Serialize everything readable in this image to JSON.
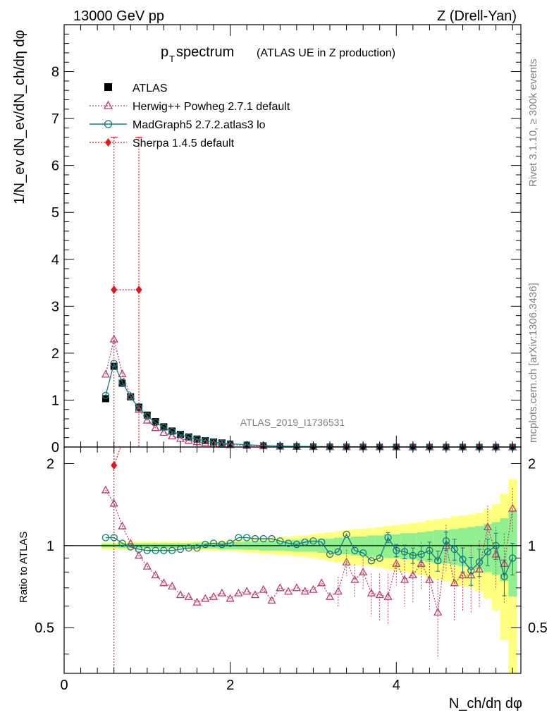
{
  "header": {
    "energy": "13000 GeV pp",
    "process": "Z (Drell-Yan)"
  },
  "side": {
    "rivet": "Rivet 3.1.10, ≥ 300k events",
    "mcplots": "mcplots.cern.ch [arXiv:1306.3436]"
  },
  "chart_data": {
    "type": "line",
    "title_main": "p",
    "title_sub": "T",
    "title_rest": " spectrum",
    "title_extra": "(ATLAS UE in Z production)",
    "watermark": "ATLAS_2019_I1736531",
    "ylabel_top": "1/N_ev dN_ev/dN_ch/dη dφ",
    "ylabel_bottom": "Ratio to ATLAS",
    "xlabel": "N_ch/dη dφ",
    "xlim": [
      0,
      5.5
    ],
    "ylim_top": [
      0,
      9
    ],
    "ylim_bottom": [
      0.34,
      2.3
    ],
    "xticks": [
      "0",
      "2",
      "4"
    ],
    "yticks_top": [
      "0",
      "1",
      "2",
      "3",
      "4",
      "5",
      "6",
      "7",
      "8"
    ],
    "yticks_bottom": [
      "0.5",
      "1",
      "2"
    ],
    "legend": [
      {
        "name": "ATLAS",
        "color": "#000000",
        "marker": "square"
      },
      {
        "name": "Herwig++ Powheg 2.7.1 default",
        "color": "#c23b6c",
        "marker": "triangle"
      },
      {
        "name": "MadGraph5 2.7.2.atlas3 lo",
        "color": "#137a7a",
        "marker": "circle"
      },
      {
        "name": "Sherpa 1.4.5 default",
        "color": "#e8141c",
        "marker": "diamond"
      }
    ],
    "atlas": {
      "x": [
        0.5,
        0.6,
        0.7,
        0.8,
        0.9,
        1.0,
        1.1,
        1.2,
        1.3,
        1.4,
        1.5,
        1.6,
        1.7,
        1.8,
        1.9,
        2.0,
        2.2,
        2.4,
        2.6,
        2.8,
        3.0,
        3.2,
        3.4,
        3.6,
        3.8,
        4.0,
        4.2,
        4.4,
        4.6,
        4.8,
        5.0,
        5.2,
        5.4
      ],
      "y": [
        1.03,
        1.72,
        1.36,
        1.07,
        0.85,
        0.68,
        0.54,
        0.43,
        0.34,
        0.27,
        0.215,
        0.17,
        0.135,
        0.108,
        0.087,
        0.07,
        0.047,
        0.031,
        0.021,
        0.014,
        0.0095,
        0.0065,
        0.0045,
        0.003,
        0.002,
        0.0014,
        0.001,
        0.0007,
        0.0005,
        0.0003,
        0.0002,
        0.00015,
        0.0001
      ]
    },
    "herwig": {
      "x": [
        0.5,
        0.6,
        0.7,
        0.8,
        0.9,
        1.0,
        1.1,
        1.2,
        1.3,
        1.4,
        1.5,
        1.6,
        1.7,
        1.8,
        1.9,
        2.0,
        2.2,
        2.4,
        2.6,
        2.8,
        3.0,
        3.2,
        3.4,
        3.6,
        3.8,
        4.0,
        4.2,
        4.4,
        4.6,
        4.8,
        5.0,
        5.2,
        5.4
      ],
      "y": [
        1.55,
        2.3,
        1.56,
        1.09,
        0.8,
        0.57,
        0.41,
        0.31,
        0.235,
        0.18,
        0.14,
        0.11,
        0.088,
        0.07,
        0.057,
        0.046,
        0.031,
        0.021,
        0.014,
        0.0095,
        0.0065,
        0.0045,
        0.003,
        0.002,
        0.0014,
        0.001,
        0.0007,
        0.0005,
        0.0003,
        0.0002,
        0.00015,
        0.0001,
        0.0001
      ],
      "ratio_x": [
        0.5,
        0.6,
        0.7,
        0.8,
        0.9,
        1.0,
        1.1,
        1.2,
        1.3,
        1.4,
        1.5,
        1.6,
        1.7,
        1.8,
        1.9,
        2.0,
        2.1,
        2.2,
        2.3,
        2.4,
        2.5,
        2.6,
        2.7,
        2.8,
        2.9,
        3.0,
        3.1,
        3.2,
        3.3,
        3.4,
        3.5,
        3.6,
        3.7,
        3.8,
        3.9,
        4.0,
        4.1,
        4.2,
        4.3,
        4.4,
        4.5,
        4.6,
        4.7,
        4.8,
        4.9,
        5.0,
        5.1,
        5.2,
        5.3,
        5.4
      ],
      "ratio": [
        1.6,
        1.43,
        1.18,
        1.02,
        0.92,
        0.84,
        0.78,
        0.73,
        0.71,
        0.66,
        0.65,
        0.62,
        0.64,
        0.65,
        0.67,
        0.64,
        0.67,
        0.68,
        0.66,
        0.69,
        0.63,
        0.7,
        0.68,
        0.7,
        0.68,
        0.69,
        0.73,
        0.65,
        0.68,
        0.87,
        0.75,
        0.8,
        0.67,
        0.66,
        0.65,
        0.86,
        0.75,
        0.78,
        0.86,
        0.75,
        0.57,
        1.0,
        0.73,
        0.78,
        0.78,
        0.82,
        1.17,
        0.93,
        0.86,
        1.37
      ]
    },
    "madgraph": {
      "x": [
        0.5,
        0.6,
        0.7,
        0.8,
        0.9,
        1.0,
        1.1,
        1.2,
        1.3,
        1.4,
        1.5,
        1.6,
        1.7,
        1.8,
        1.9,
        2.0,
        2.2,
        2.4,
        2.6,
        2.8,
        3.0,
        3.2,
        3.4,
        3.6,
        3.8,
        4.0,
        4.2,
        4.4,
        4.6,
        4.8,
        5.0,
        5.2,
        5.4
      ],
      "y": [
        1.1,
        1.78,
        1.38,
        1.07,
        0.83,
        0.66,
        0.52,
        0.42,
        0.33,
        0.265,
        0.21,
        0.165,
        0.135,
        0.107,
        0.087,
        0.07,
        0.049,
        0.032,
        0.021,
        0.014,
        0.0095,
        0.0065,
        0.0045,
        0.003,
        0.002,
        0.0014,
        0.001,
        0.0007,
        0.0005,
        0.0003,
        0.0002,
        0.00015,
        0.0001
      ],
      "ratio_x": [
        0.5,
        0.6,
        0.7,
        0.8,
        0.9,
        1.0,
        1.1,
        1.2,
        1.3,
        1.4,
        1.5,
        1.6,
        1.7,
        1.8,
        1.9,
        2.0,
        2.1,
        2.2,
        2.3,
        2.4,
        2.5,
        2.6,
        2.7,
        2.8,
        2.9,
        3.0,
        3.1,
        3.2,
        3.3,
        3.4,
        3.5,
        3.6,
        3.7,
        3.8,
        3.9,
        4.0,
        4.1,
        4.2,
        4.3,
        4.4,
        4.5,
        4.6,
        4.7,
        4.8,
        4.9,
        5.0,
        5.1,
        5.2,
        5.3,
        5.4
      ],
      "ratio": [
        1.07,
        1.07,
        1.02,
        0.99,
        0.97,
        0.96,
        0.96,
        0.96,
        0.96,
        0.97,
        0.98,
        0.98,
        1.01,
        1.02,
        1.01,
        1.02,
        1.07,
        1.07,
        1.06,
        1.06,
        1.06,
        1.04,
        1.02,
        1.01,
        1.03,
        1.04,
        1.03,
        0.93,
        0.95,
        1.1,
        0.96,
        0.94,
        0.88,
        0.9,
        1.07,
        0.96,
        0.95,
        0.92,
        0.93,
        0.96,
        0.88,
        1.04,
        0.97,
        0.89,
        0.81,
        0.87,
        0.95,
        1.0,
        0.77,
        0.9
      ]
    },
    "sherpa": {
      "x": [
        0.6,
        0.9
      ],
      "y": [
        3.35,
        3.35
      ],
      "err_top": 6.6,
      "ratio_point": {
        "x": 0.6,
        "y": 1.97
      }
    },
    "band": {
      "x": [
        0.5,
        0.6,
        0.7,
        0.8,
        0.9,
        1.0,
        1.1,
        1.2,
        1.3,
        1.4,
        1.5,
        1.6,
        1.7,
        1.8,
        1.9,
        2.0,
        2.1,
        2.2,
        2.3,
        2.4,
        2.5,
        2.6,
        2.7,
        2.8,
        2.9,
        3.0,
        3.1,
        3.2,
        3.3,
        3.4,
        3.5,
        3.6,
        3.7,
        3.8,
        3.9,
        4.0,
        4.1,
        4.2,
        4.3,
        4.4,
        4.5,
        4.6,
        4.7,
        4.8,
        4.9,
        5.0,
        5.1,
        5.2,
        5.3,
        5.4
      ],
      "stat": [
        0.015,
        0.015,
        0.02,
        0.02,
        0.02,
        0.02,
        0.02,
        0.02,
        0.02,
        0.02,
        0.02,
        0.025,
        0.025,
        0.025,
        0.03,
        0.03,
        0.03,
        0.035,
        0.035,
        0.04,
        0.04,
        0.04,
        0.045,
        0.05,
        0.05,
        0.05,
        0.06,
        0.06,
        0.07,
        0.07,
        0.08,
        0.08,
        0.09,
        0.09,
        0.1,
        0.1,
        0.11,
        0.11,
        0.12,
        0.13,
        0.14,
        0.14,
        0.15,
        0.16,
        0.17,
        0.18,
        0.2,
        0.22,
        0.26,
        0.35
      ],
      "total": [
        0.03,
        0.03,
        0.035,
        0.035,
        0.035,
        0.035,
        0.035,
        0.035,
        0.035,
        0.035,
        0.035,
        0.04,
        0.04,
        0.04,
        0.045,
        0.045,
        0.05,
        0.055,
        0.06,
        0.065,
        0.07,
        0.075,
        0.08,
        0.085,
        0.09,
        0.1,
        0.11,
        0.12,
        0.13,
        0.14,
        0.15,
        0.15,
        0.16,
        0.17,
        0.18,
        0.19,
        0.2,
        0.21,
        0.22,
        0.24,
        0.25,
        0.26,
        0.28,
        0.29,
        0.3,
        0.32,
        0.36,
        0.42,
        0.55,
        0.75
      ]
    }
  }
}
